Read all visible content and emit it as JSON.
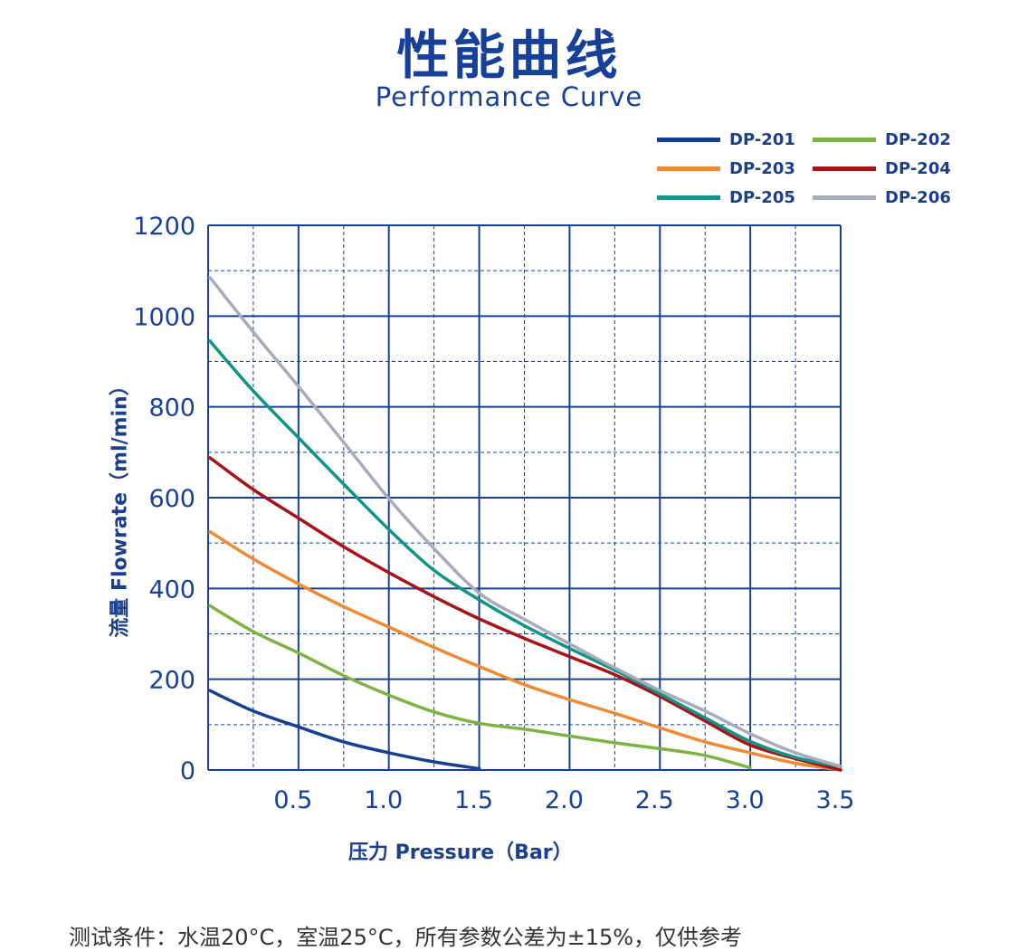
{
  "header": {
    "title_cn": "性能曲线",
    "title_en": "Performance Curve"
  },
  "footnote": "测试条件：水温20°C，室温25°C，所有参数公差为±15%，仅供参考",
  "chart_data": {
    "type": "line",
    "xlabel": "压力 Pressure（Bar）",
    "ylabel": "流量 Flowrate（ml/min）",
    "xlim": [
      0,
      3.5
    ],
    "ylim": [
      0,
      1200
    ],
    "xticks": [
      "0.5",
      "1.0",
      "1.5",
      "2.0",
      "2.5",
      "3.0",
      "3.5"
    ],
    "xtick_values": [
      0.5,
      1.0,
      1.5,
      2.0,
      2.5,
      3.0,
      3.5
    ],
    "yticks": [
      "0",
      "200",
      "400",
      "600",
      "800",
      "1000",
      "1200"
    ],
    "ytick_values": [
      0,
      200,
      400,
      600,
      800,
      1000,
      1200
    ],
    "grid": "major solid, minor dashed",
    "legend_position": "top-right",
    "series": [
      {
        "name": "DP-201",
        "color": "#163f94",
        "points": [
          [
            0.01,
            175
          ],
          [
            0.25,
            130
          ],
          [
            0.5,
            95
          ],
          [
            0.75,
            62
          ],
          [
            1.0,
            38
          ],
          [
            1.25,
            18
          ],
          [
            1.5,
            3
          ]
        ]
      },
      {
        "name": "DP-202",
        "color": "#7cb342",
        "points": [
          [
            0.01,
            362
          ],
          [
            0.25,
            305
          ],
          [
            0.5,
            258
          ],
          [
            0.75,
            208
          ],
          [
            1.0,
            165
          ],
          [
            1.25,
            128
          ],
          [
            1.5,
            103
          ],
          [
            1.75,
            90
          ],
          [
            2.0,
            75
          ],
          [
            2.25,
            60
          ],
          [
            2.5,
            47
          ],
          [
            2.75,
            32
          ],
          [
            3.0,
            5
          ]
        ]
      },
      {
        "name": "DP-203",
        "color": "#ee8a33",
        "points": [
          [
            0.01,
            525
          ],
          [
            0.25,
            465
          ],
          [
            0.5,
            410
          ],
          [
            0.75,
            360
          ],
          [
            1.0,
            315
          ],
          [
            1.25,
            270
          ],
          [
            1.5,
            228
          ],
          [
            1.75,
            188
          ],
          [
            2.0,
            155
          ],
          [
            2.25,
            125
          ],
          [
            2.5,
            93
          ],
          [
            2.75,
            62
          ],
          [
            3.0,
            38
          ],
          [
            3.25,
            15
          ],
          [
            3.5,
            0
          ]
        ]
      },
      {
        "name": "DP-204",
        "color": "#a61417",
        "points": [
          [
            0.01,
            688
          ],
          [
            0.25,
            618
          ],
          [
            0.5,
            555
          ],
          [
            0.75,
            492
          ],
          [
            1.0,
            435
          ],
          [
            1.25,
            382
          ],
          [
            1.5,
            333
          ],
          [
            1.75,
            290
          ],
          [
            2.0,
            250
          ],
          [
            2.25,
            210
          ],
          [
            2.5,
            162
          ],
          [
            2.75,
            108
          ],
          [
            3.0,
            55
          ],
          [
            3.25,
            25
          ],
          [
            3.5,
            0
          ]
        ]
      },
      {
        "name": "DP-205",
        "color": "#109486",
        "points": [
          [
            0.01,
            945
          ],
          [
            0.25,
            835
          ],
          [
            0.5,
            732
          ],
          [
            0.75,
            630
          ],
          [
            1.0,
            530
          ],
          [
            1.25,
            440
          ],
          [
            1.5,
            375
          ],
          [
            1.75,
            318
          ],
          [
            2.0,
            268
          ],
          [
            2.25,
            220
          ],
          [
            2.5,
            168
          ],
          [
            2.75,
            115
          ],
          [
            3.0,
            63
          ],
          [
            3.25,
            28
          ],
          [
            3.5,
            8
          ]
        ]
      },
      {
        "name": "DP-206",
        "color": "#a8abb8",
        "points": [
          [
            0.01,
            1085
          ],
          [
            0.25,
            965
          ],
          [
            0.5,
            845
          ],
          [
            0.75,
            722
          ],
          [
            1.0,
            598
          ],
          [
            1.25,
            488
          ],
          [
            1.5,
            390
          ],
          [
            1.75,
            332
          ],
          [
            2.0,
            278
          ],
          [
            2.25,
            225
          ],
          [
            2.5,
            175
          ],
          [
            2.75,
            130
          ],
          [
            3.0,
            80
          ],
          [
            3.25,
            38
          ],
          [
            3.5,
            8
          ]
        ]
      }
    ]
  }
}
